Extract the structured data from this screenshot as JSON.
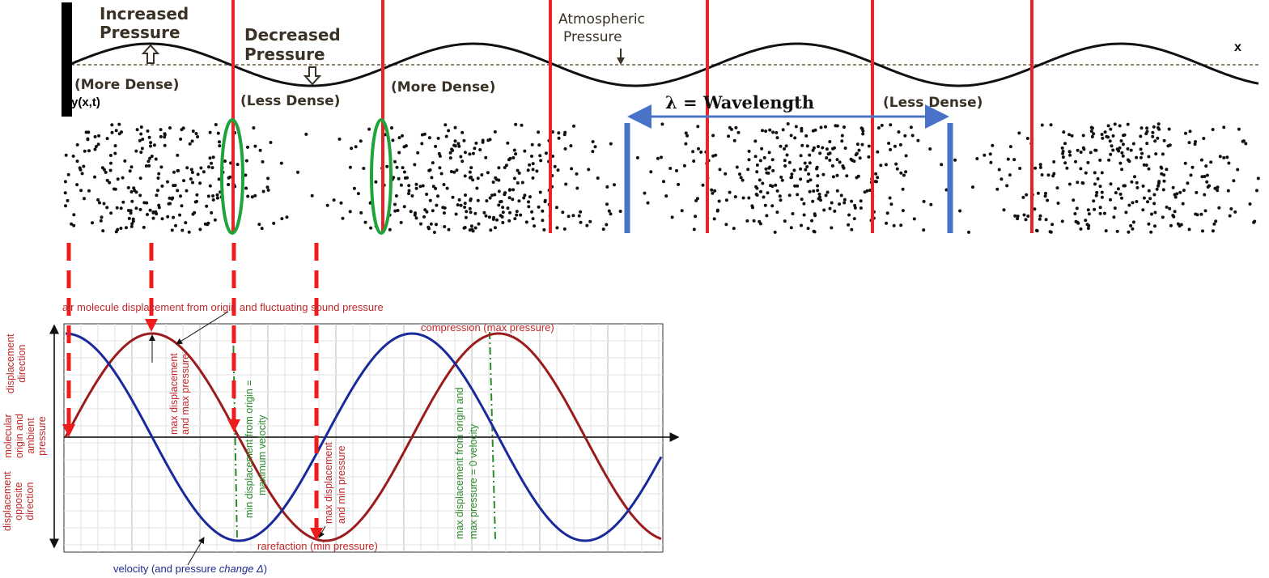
{
  "top": {
    "labels": {
      "increased_pressure_1": "Increased",
      "increased_pressure_2": "Pressure",
      "decreased_pressure_1": "Decreased",
      "decreased_pressure_2": "Pressure",
      "atmospheric_1": "Atmospheric",
      "atmospheric_2": "Pressure",
      "more_dense_1": "(More Dense)",
      "more_dense_2": "(More Dense)",
      "less_dense_1": "(Less Dense)",
      "less_dense_2": "(Less Dense)",
      "wavelength": "λ = Wavelength",
      "y_axis": "y(x,t)",
      "x_axis": "x"
    },
    "colors": {
      "wave": "#111111",
      "divider": "#e8232a",
      "wavelength_marker": "#4a73c8",
      "node_ellipse": "#1fa33a",
      "molecules": "#111111"
    }
  },
  "bottom": {
    "title": "air molecule displacement from origin and fluctuating sound pressure",
    "compression": "compression (max pressure)",
    "rarefaction": "rarefaction (min pressure)",
    "velocity_1": "velocity (and pressure ",
    "velocity_2": "change Δ",
    "velocity_3": ")",
    "max_disp_max_pressure": [
      "max displacement",
      "and max pressure"
    ],
    "min_disp_max_velocity": [
      "min displacement from origin =",
      "maximum velocity"
    ],
    "max_disp_min_pressure": [
      "max displacement",
      "and min pressure"
    ],
    "max_disp_zero_velocity": [
      "max displacement from origin and",
      "max pressure = 0 velocity"
    ],
    "y_labels": {
      "top": [
        "displacement",
        "direction"
      ],
      "middle": [
        "molecular",
        "origin and",
        "ambient",
        "pressure"
      ],
      "bottom": [
        "displacement",
        "opposite",
        "direction"
      ]
    },
    "colors": {
      "displacement_curve": "#9b1c1c",
      "velocity_curve": "#1a2a9a",
      "annotation_line": "#2a8a2a",
      "drop_arrows": "#ee1c1c",
      "grid": "#cfcfcf"
    }
  }
}
